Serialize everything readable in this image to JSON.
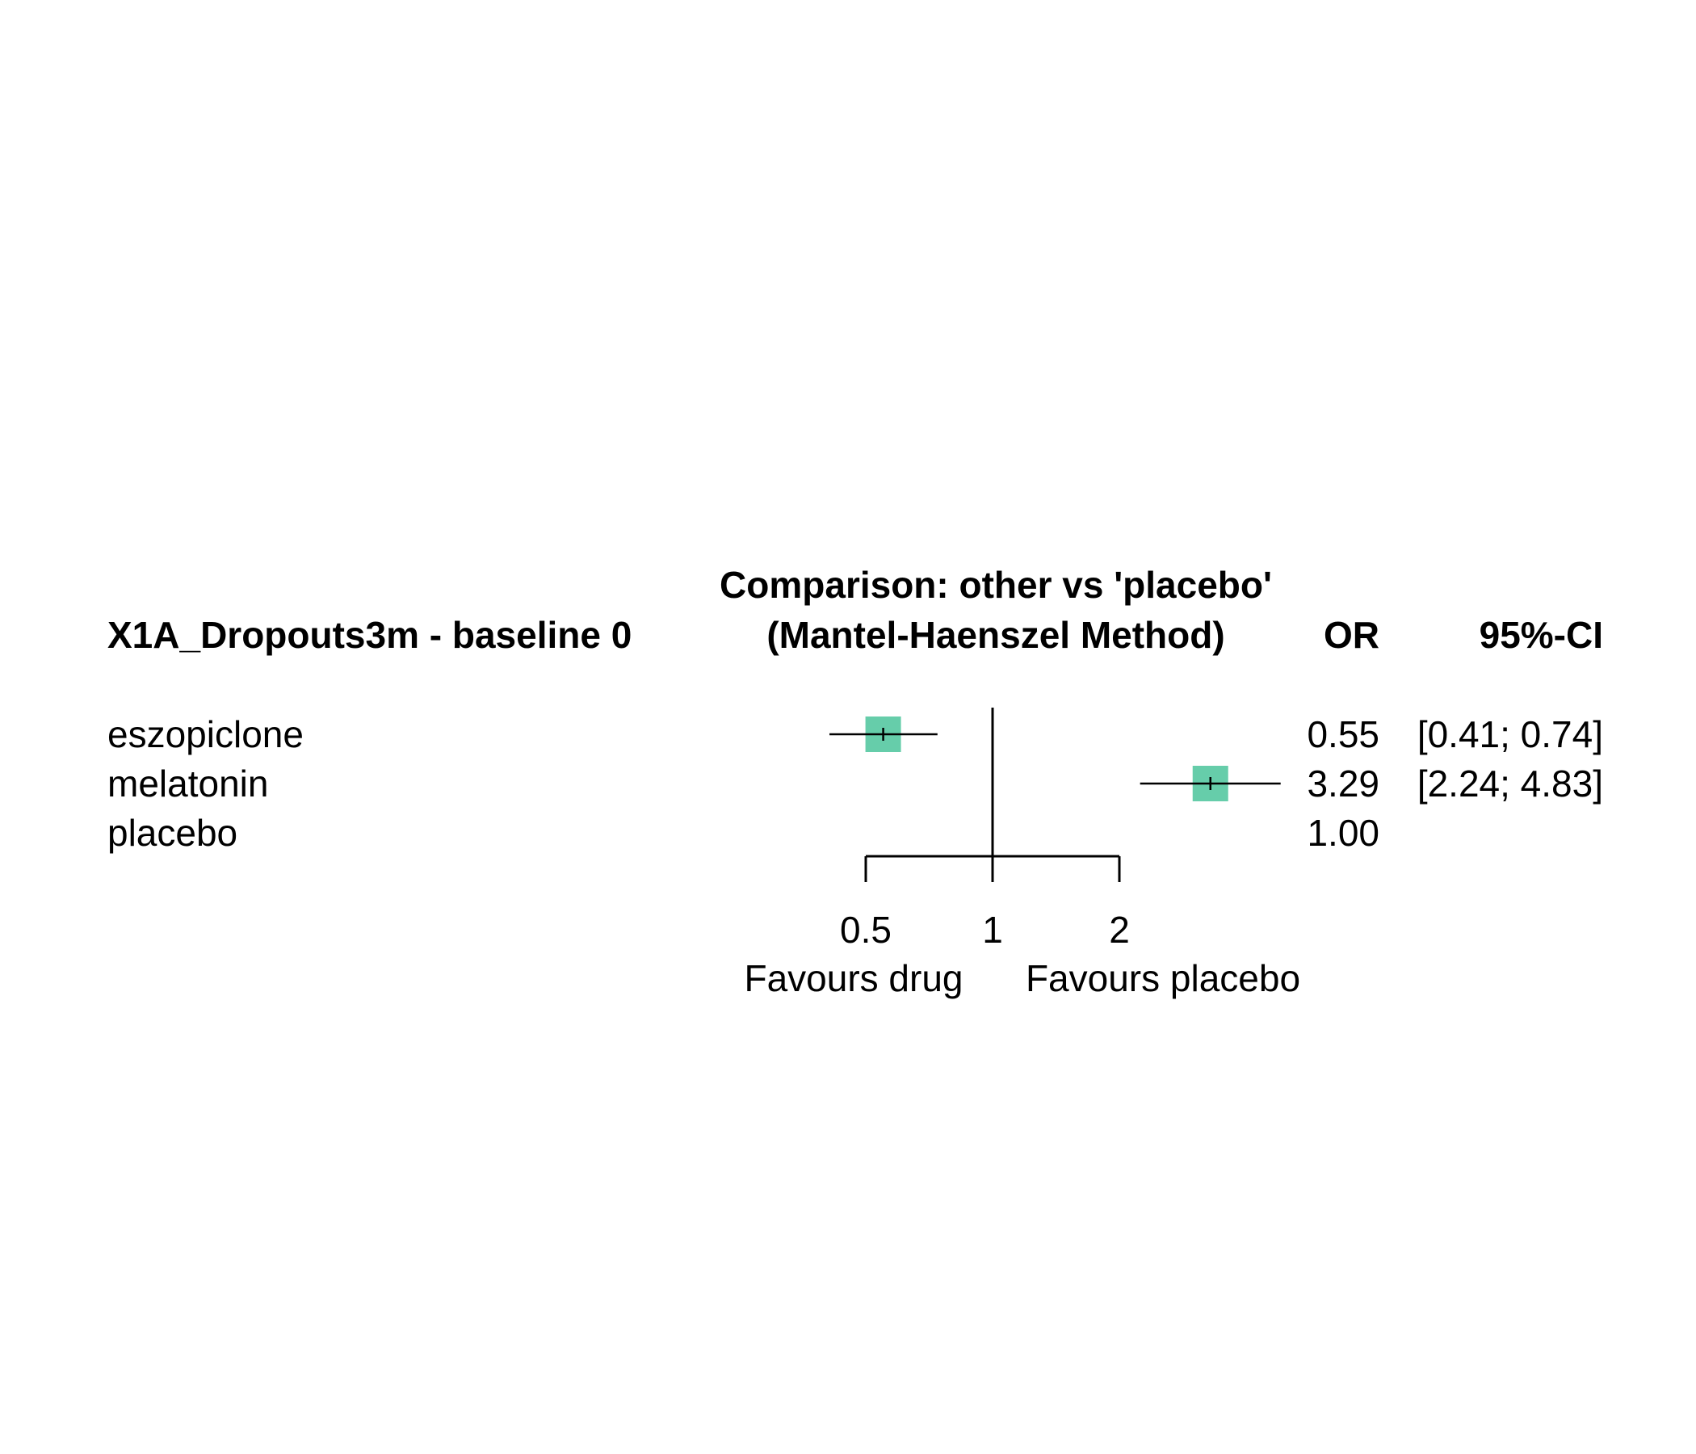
{
  "chart_data": {
    "type": "forest",
    "header": {
      "left_label": "X1A_Dropouts3m - baseline 0",
      "title_line1": "Comparison: other vs 'placebo'",
      "title_line2": "(Mantel-Haenszel Method)",
      "or_label": "OR",
      "ci_label": "95%-CI"
    },
    "rows": [
      {
        "label": "eszopiclone",
        "or": 0.55,
        "lower": 0.41,
        "upper": 0.74,
        "or_text": "0.55",
        "ci_text": "[0.41; 0.74]"
      },
      {
        "label": "melatonin",
        "or": 3.29,
        "lower": 2.24,
        "upper": 4.83,
        "or_text": "3.29",
        "ci_text": "[2.24; 4.83]"
      },
      {
        "label": "placebo",
        "or": 1.0,
        "lower": null,
        "upper": null,
        "or_text": "1.00",
        "ci_text": ""
      }
    ],
    "x_axis": {
      "scale": "log",
      "ticks": [
        0.5,
        1,
        2
      ],
      "tick_labels": [
        "0.5",
        "1",
        "2"
      ],
      "reference": 1
    },
    "favours_left": "Favours drug",
    "favours_right": "Favours placebo",
    "box_color": "#66CDAA"
  }
}
